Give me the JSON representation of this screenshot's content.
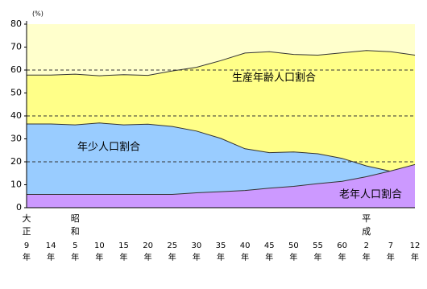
{
  "chart_data": {
    "type": "area",
    "unit_label": "(%)",
    "categories": [
      "9年",
      "14年",
      "5年",
      "10年",
      "15年",
      "20年",
      "25年",
      "30年",
      "35年",
      "40年",
      "45年",
      "50年",
      "55年",
      "60年",
      "2年",
      "7年",
      "12年"
    ],
    "era_labels": [
      "大正",
      null,
      "昭和",
      null,
      null,
      null,
      null,
      null,
      null,
      null,
      null,
      null,
      null,
      null,
      "平成",
      null,
      null
    ],
    "series": [
      {
        "name": "生産年齢人口割合",
        "color": "#ffff88",
        "values": [
          57.8,
          57.8,
          58.2,
          57.5,
          58.0,
          57.7,
          59.6,
          61.2,
          64.1,
          67.4,
          68.0,
          66.8,
          66.5,
          67.5,
          68.5,
          68.0,
          66.5
        ]
      },
      {
        "name": "年少人口割合",
        "color": "#99ccff",
        "values": [
          36.5,
          36.5,
          36.1,
          36.9,
          36.1,
          36.4,
          35.4,
          33.4,
          30.2,
          25.7,
          24.0,
          24.3,
          23.5,
          21.5,
          18.2,
          15.9,
          14.6
        ]
      },
      {
        "name": "老年人口割合",
        "color": "#cc99ff",
        "values": [
          5.8,
          5.8,
          5.8,
          5.8,
          5.8,
          5.8,
          5.8,
          6.5,
          7.0,
          7.5,
          8.5,
          9.3,
          10.5,
          11.5,
          13.5,
          16.0,
          18.8
        ]
      }
    ],
    "background": "#ffffcc",
    "ylim": [
      0,
      80
    ],
    "yticks": [
      0,
      10,
      20,
      30,
      40,
      50,
      60,
      70,
      80
    ],
    "grid_lines": [
      20,
      40,
      60
    ]
  }
}
